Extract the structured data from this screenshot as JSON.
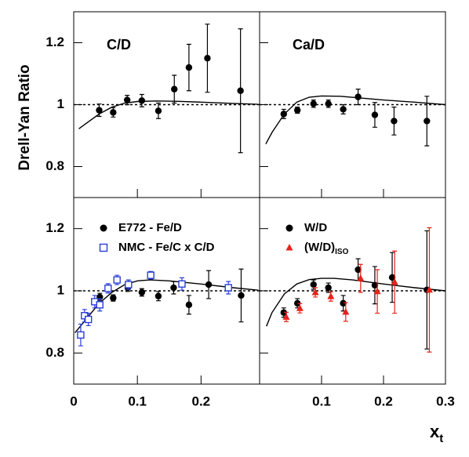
{
  "axis_labels": {
    "y": "Drell-Yan Ratio",
    "x": "x",
    "x_sub": "t"
  },
  "chart_data": [
    {
      "type": "scatter",
      "title": "C/D",
      "xlim": [
        0,
        0.292
      ],
      "ylim": [
        0.7,
        1.3
      ],
      "xticks": [
        0,
        0.1,
        0.2
      ],
      "yticks": [
        0.8,
        1,
        1.2
      ],
      "hline": 1,
      "series": [
        {
          "color": "#000000",
          "marker": "circle",
          "x": [
            0.04,
            0.062,
            0.084,
            0.107,
            0.133,
            0.158,
            0.181,
            0.21,
            0.262
          ],
          "values": [
            0.982,
            0.975,
            1.015,
            1.013,
            0.98,
            1.05,
            1.12,
            1.15,
            1.045
          ],
          "errors": [
            0.02,
            0.015,
            0.015,
            0.02,
            0.025,
            0.045,
            0.075,
            0.11,
            0.2
          ]
        }
      ],
      "curve": {
        "x": [
          0.008,
          0.02,
          0.04,
          0.06,
          0.08,
          0.1,
          0.13,
          0.16,
          0.2,
          0.25,
          0.29
        ],
        "values": [
          0.922,
          0.94,
          0.97,
          0.992,
          1.005,
          1.01,
          1.012,
          1.011,
          1.008,
          1.004,
          1.001
        ]
      }
    },
    {
      "type": "scatter",
      "title": "Ca/D",
      "xlim": [
        0,
        0.3
      ],
      "ylim": [
        0.7,
        1.3
      ],
      "xticks": [
        0.1,
        0.2,
        0.3
      ],
      "yticks": [
        0.8,
        1,
        1.2
      ],
      "hline": 1,
      "series": [
        {
          "color": "#000000",
          "marker": "circle",
          "x": [
            0.039,
            0.061,
            0.087,
            0.111,
            0.135,
            0.159,
            0.186,
            0.217,
            0.27
          ],
          "values": [
            0.97,
            0.982,
            1.003,
            1.003,
            0.985,
            1.025,
            0.967,
            0.947,
            0.947
          ],
          "errors": [
            0.015,
            0.01,
            0.012,
            0.012,
            0.015,
            0.025,
            0.04,
            0.045,
            0.08
          ]
        }
      ],
      "curve": {
        "x": [
          0.01,
          0.02,
          0.04,
          0.06,
          0.08,
          0.1,
          0.13,
          0.16,
          0.2,
          0.25,
          0.3
        ],
        "values": [
          0.873,
          0.91,
          0.97,
          1.008,
          1.024,
          1.028,
          1.027,
          1.022,
          1.015,
          1.008,
          1.0
        ]
      }
    },
    {
      "type": "scatter",
      "xlim": [
        0,
        0.292
      ],
      "ylim": [
        0.7,
        1.3
      ],
      "xticks": [
        0,
        0.1,
        0.2
      ],
      "yticks": [
        0.8,
        1,
        1.2
      ],
      "hline": 1,
      "legend": "upper left",
      "series": [
        {
          "name": "E772 - Fe/D",
          "color": "#000000",
          "marker": "circle",
          "x": [
            0.041,
            0.062,
            0.085,
            0.107,
            0.133,
            0.157,
            0.181,
            0.212,
            0.263
          ],
          "values": [
            0.98,
            0.977,
            1.01,
            0.995,
            0.983,
            1.01,
            0.955,
            1.02,
            0.985
          ],
          "errors": [
            0.012,
            0.01,
            0.012,
            0.012,
            0.015,
            0.02,
            0.03,
            0.045,
            0.085
          ]
        },
        {
          "name": "NMC - Fe/C x C/D",
          "color": "#2b3fd6",
          "marker": "open-square",
          "x": [
            0.011,
            0.017,
            0.023,
            0.033,
            0.041,
            0.054,
            0.068,
            0.086,
            0.121,
            0.17,
            0.243
          ],
          "values": [
            0.858,
            0.92,
            0.908,
            0.965,
            0.955,
            1.008,
            1.035,
            1.02,
            1.05,
            1.022,
            1.01
          ],
          "errors": [
            0.035,
            0.02,
            0.02,
            0.02,
            0.02,
            0.015,
            0.015,
            0.015,
            0.012,
            0.02,
            0.02
          ]
        }
      ],
      "curve": {
        "x": [
          0.002,
          0.02,
          0.04,
          0.06,
          0.08,
          0.1,
          0.12,
          0.15,
          0.2,
          0.25,
          0.29
        ],
        "values": [
          0.865,
          0.91,
          0.96,
          0.995,
          1.02,
          1.032,
          1.035,
          1.032,
          1.022,
          1.01,
          1.002
        ]
      }
    },
    {
      "type": "scatter",
      "xlim": [
        0,
        0.3
      ],
      "ylim": [
        0.7,
        1.3
      ],
      "xticks": [
        0.1,
        0.2,
        0.3
      ],
      "yticks": [
        0.8,
        1,
        1.2
      ],
      "hline": 1,
      "legend": "upper left",
      "series": [
        {
          "name": "W/D",
          "color": "#000000",
          "marker": "circle",
          "x": [
            0.039,
            0.061,
            0.087,
            0.111,
            0.135,
            0.159,
            0.186,
            0.214,
            0.27
          ],
          "values": [
            0.93,
            0.96,
            1.02,
            1.01,
            0.96,
            1.068,
            1.018,
            1.043,
            1.003
          ],
          "errors": [
            0.015,
            0.015,
            0.015,
            0.015,
            0.025,
            0.035,
            0.06,
            0.08,
            0.19
          ]
        },
        {
          "name": "(W/D)",
          "name_sub": "ISO",
          "color": "#e8221b",
          "marker": "triangle",
          "x": [
            0.043,
            0.065,
            0.09,
            0.115,
            0.139,
            0.163,
            0.19,
            0.218,
            0.274
          ],
          "values": [
            0.916,
            0.944,
            0.995,
            0.982,
            0.932,
            1.04,
            0.998,
            1.028,
            1.003
          ],
          "errors": [
            0.015,
            0.015,
            0.015,
            0.015,
            0.03,
            0.045,
            0.07,
            0.1,
            0.2
          ]
        }
      ],
      "curve": {
        "x": [
          0.011,
          0.02,
          0.04,
          0.06,
          0.08,
          0.1,
          0.12,
          0.15,
          0.2,
          0.25,
          0.3
        ],
        "values": [
          0.886,
          0.93,
          0.99,
          1.022,
          1.036,
          1.04,
          1.04,
          1.035,
          1.022,
          1.01,
          1.0
        ]
      }
    }
  ]
}
